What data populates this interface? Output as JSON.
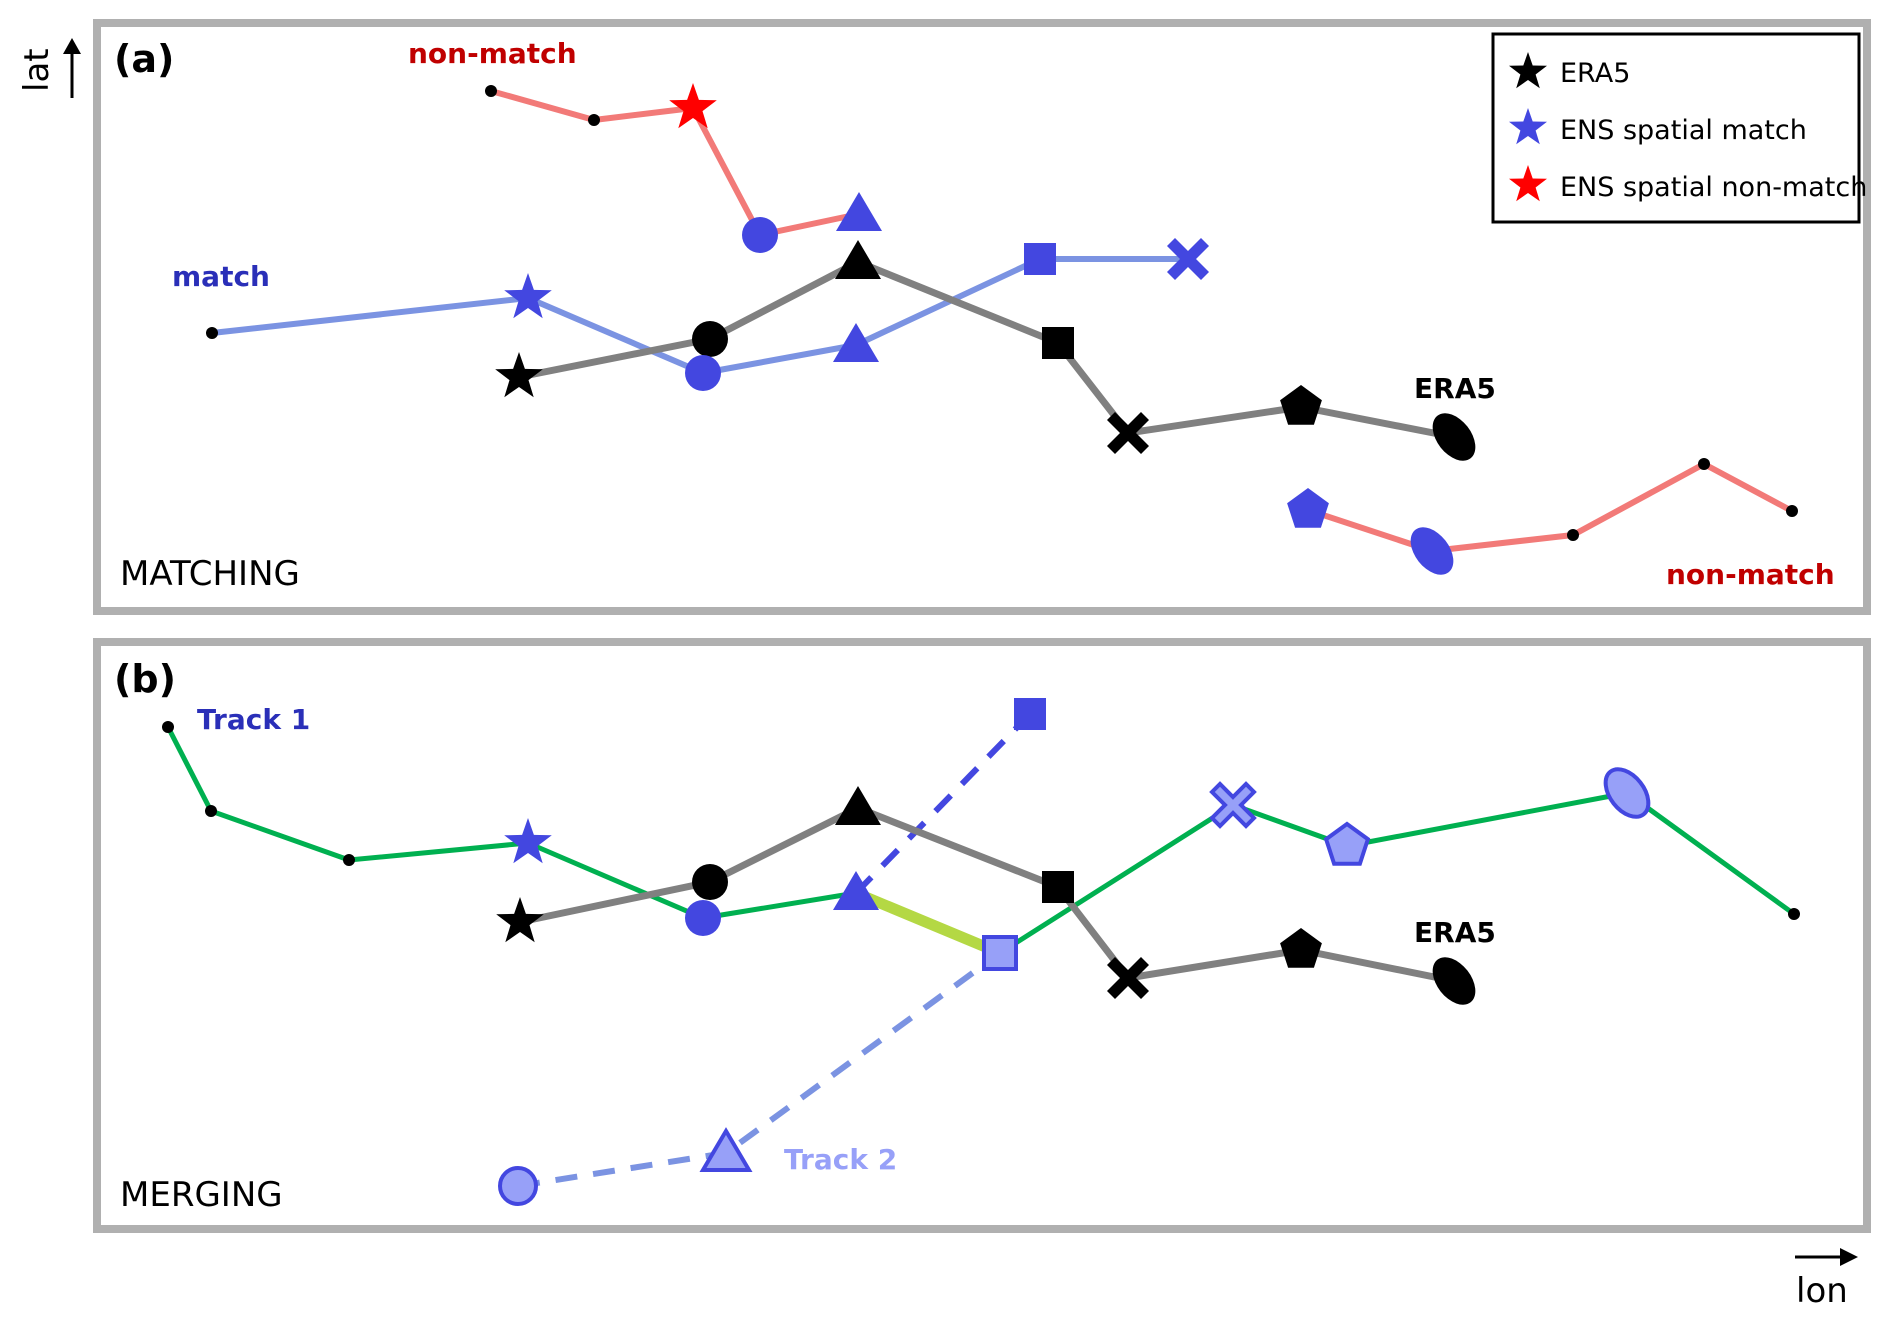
{
  "axes": {
    "y_label": "lat",
    "x_label": "lon"
  },
  "colors": {
    "frame": "#b0b0b0",
    "era5": "#000000",
    "era5_line": "#808080",
    "ens_match": "#4347e0",
    "ens_match_light": "#97a0f8",
    "match_line": "#7b93e2",
    "nonmatch_marker": "#ff0000",
    "nonmatch_line": "#f27a78",
    "nonmatch_label": "#c00000",
    "match_label": "#2a2fb8",
    "track1_line": "#00b050",
    "merge_segment": "#b4d844",
    "track2_label": "#97a0f8"
  },
  "legend": {
    "items": [
      {
        "label": "ERA5",
        "marker": "star",
        "color": "#000000"
      },
      {
        "label": "ENS spatial match",
        "marker": "star",
        "color": "#4347e0"
      },
      {
        "label": "ENS spatial non-match",
        "marker": "star",
        "color": "#ff0000"
      }
    ]
  },
  "panel_a": {
    "tag": "(a)",
    "title": "MATCHING",
    "labels": {
      "nonmatch_top": "non-match",
      "match": "match",
      "era5": "ERA5",
      "nonmatch_bottom": "non-match"
    },
    "tracks": [
      {
        "name": "era5",
        "markers": [
          "star",
          "circle",
          "triangle",
          "square",
          "x",
          "pentagon",
          "ellipse"
        ]
      },
      {
        "name": "match",
        "markers": [
          "dot",
          "star",
          "circle",
          "triangle",
          "square",
          "x"
        ]
      },
      {
        "name": "nonmatch-top",
        "markers": [
          "dot",
          "dot",
          "star",
          "circle",
          "triangle"
        ]
      },
      {
        "name": "nonmatch-bottom",
        "markers": [
          "pentagon",
          "ellipse",
          "dot",
          "dot",
          "dot"
        ]
      }
    ]
  },
  "panel_b": {
    "tag": "(b)",
    "title": "MERGING",
    "labels": {
      "track1": "Track 1",
      "track2": "Track 2",
      "era5": "ERA5"
    },
    "tracks": [
      {
        "name": "era5",
        "markers": [
          "star",
          "circle",
          "triangle",
          "square",
          "x",
          "pentagon",
          "ellipse"
        ]
      },
      {
        "name": "track1",
        "markers": [
          "dot",
          "dot",
          "dot",
          "star",
          "circle",
          "triangle",
          "square",
          "x",
          "pentagon",
          "ellipse",
          "dot"
        ]
      },
      {
        "name": "track1-branch",
        "markers": [
          "triangle",
          "square"
        ]
      },
      {
        "name": "track2",
        "markers": [
          "circle",
          "triangle",
          "square"
        ]
      }
    ]
  }
}
